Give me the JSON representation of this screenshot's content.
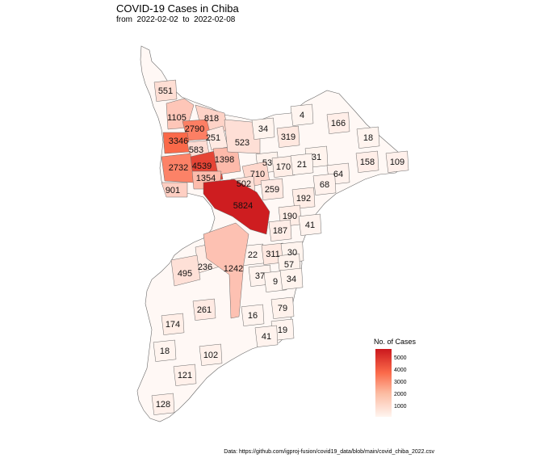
{
  "title": "COVID-19 Cases in Chiba",
  "subtitle": "from  2022-02-02  to  2022-02-08",
  "caption": "Data: https://github.com/igproj-fusion/covid19_data/blob/main/covid_chiba_2022.csv",
  "legend": {
    "title": "No. of Cases",
    "ticks": [
      "5000",
      "4000",
      "3000",
      "2000",
      "1000"
    ],
    "colors": {
      "low": "#fff5f0",
      "mid": "#fb6a4a",
      "high": "#cb181d"
    }
  },
  "municipalities": [
    {
      "cases": 551,
      "label": "551"
    },
    {
      "cases": 1105,
      "label": "1105"
    },
    {
      "cases": 818,
      "label": "818"
    },
    {
      "cases": 2790,
      "label": "2790"
    },
    {
      "cases": 3346,
      "label": "3346"
    },
    {
      "cases": 583,
      "label": "583"
    },
    {
      "cases": 251,
      "label": "251"
    },
    {
      "cases": 2732,
      "label": "2732"
    },
    {
      "cases": 4539,
      "label": "4539"
    },
    {
      "cases": 1398,
      "label": "1398"
    },
    {
      "cases": 1354,
      "label": "1354"
    },
    {
      "cases": 901,
      "label": "901"
    },
    {
      "cases": 523,
      "label": "523"
    },
    {
      "cases": 34,
      "label": "34"
    },
    {
      "cases": 4,
      "label": "4"
    },
    {
      "cases": 166,
      "label": "166"
    },
    {
      "cases": 319,
      "label": "319"
    },
    {
      "cases": 18,
      "label": "18"
    },
    {
      "cases": 31,
      "label": "31"
    },
    {
      "cases": 158,
      "label": "158"
    },
    {
      "cases": 109,
      "label": "109"
    },
    {
      "cases": 53,
      "label": "53"
    },
    {
      "cases": 170,
      "label": "170"
    },
    {
      "cases": 21,
      "label": "21"
    },
    {
      "cases": 64,
      "label": "64"
    },
    {
      "cases": 710,
      "label": "710"
    },
    {
      "cases": 502,
      "label": "502"
    },
    {
      "cases": 259,
      "label": "259"
    },
    {
      "cases": 68,
      "label": "68"
    },
    {
      "cases": 192,
      "label": "192"
    },
    {
      "cases": 5824,
      "label": "5824"
    },
    {
      "cases": 190,
      "label": "190"
    },
    {
      "cases": 41,
      "label": "41"
    },
    {
      "cases": 187,
      "label": "187"
    },
    {
      "cases": 22,
      "label": "22"
    },
    {
      "cases": 311,
      "label": "311"
    },
    {
      "cases": 30,
      "label": "30"
    },
    {
      "cases": 236,
      "label": "236"
    },
    {
      "cases": 1242,
      "label": "1242"
    },
    {
      "cases": 57,
      "label": "57"
    },
    {
      "cases": 495,
      "label": "495"
    },
    {
      "cases": 37,
      "label": "37"
    },
    {
      "cases": 9,
      "label": "9"
    },
    {
      "cases": 34,
      "label": "34"
    },
    {
      "cases": 261,
      "label": "261"
    },
    {
      "cases": 79,
      "label": "79"
    },
    {
      "cases": 16,
      "label": "16"
    },
    {
      "cases": 174,
      "label": "174"
    },
    {
      "cases": 19,
      "label": "19"
    },
    {
      "cases": 41,
      "label": "41"
    },
    {
      "cases": 18,
      "label": "18"
    },
    {
      "cases": 102,
      "label": "102"
    },
    {
      "cases": 121,
      "label": "121"
    },
    {
      "cases": 128,
      "label": "128"
    }
  ]
}
